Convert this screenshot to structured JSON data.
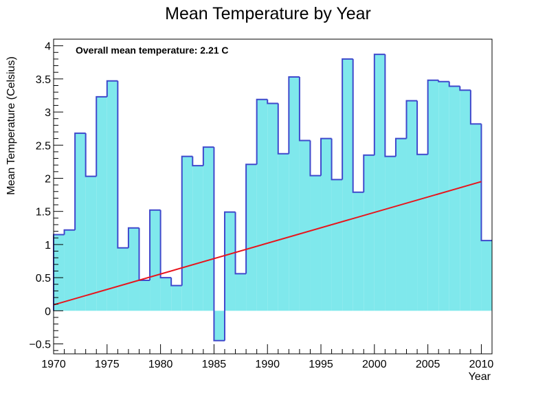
{
  "chart_data": {
    "type": "bar",
    "title": "Mean Temperature by Year",
    "xlabel": "Year",
    "ylabel": "Mean Temperature (Celsius)",
    "annotation": "Overall mean temperature: 2.21 C",
    "xlim": [
      1970,
      2011
    ],
    "ylim": [
      -0.65,
      4.1
    ],
    "x_ticks": [
      "1970",
      "1975",
      "1980",
      "1985",
      "1990",
      "1995",
      "2000",
      "2005",
      "2010"
    ],
    "y_ticks": [
      "−0.5",
      "0",
      "0.5",
      "1",
      "1.5",
      "2",
      "2.5",
      "3",
      "3.5",
      "4"
    ],
    "grid": false,
    "fill_color": "#7fe8ec",
    "line_color": "#3f48cc",
    "fit_color": "#e8141c",
    "categories": [
      1970,
      1971,
      1972,
      1973,
      1974,
      1975,
      1976,
      1977,
      1978,
      1979,
      1980,
      1981,
      1982,
      1983,
      1984,
      1985,
      1986,
      1987,
      1988,
      1989,
      1990,
      1991,
      1992,
      1993,
      1994,
      1995,
      1996,
      1997,
      1998,
      1999,
      2000,
      2001,
      2002,
      2003,
      2004,
      2005,
      2006,
      2007,
      2008,
      2009,
      2010
    ],
    "values": [
      1.15,
      1.22,
      2.68,
      2.03,
      3.23,
      3.47,
      0.95,
      1.25,
      0.46,
      1.52,
      0.5,
      0.38,
      2.33,
      2.19,
      2.47,
      -0.45,
      1.49,
      0.56,
      2.21,
      3.19,
      3.13,
      2.37,
      3.53,
      2.57,
      2.04,
      2.6,
      1.98,
      3.8,
      1.79,
      2.35,
      3.87,
      2.33,
      2.6,
      3.17,
      2.36,
      3.48,
      3.46,
      3.39,
      3.33,
      2.82,
      1.06
    ],
    "fit_line": {
      "x": [
        1970,
        2010
      ],
      "y": [
        0.09,
        1.95
      ]
    }
  }
}
